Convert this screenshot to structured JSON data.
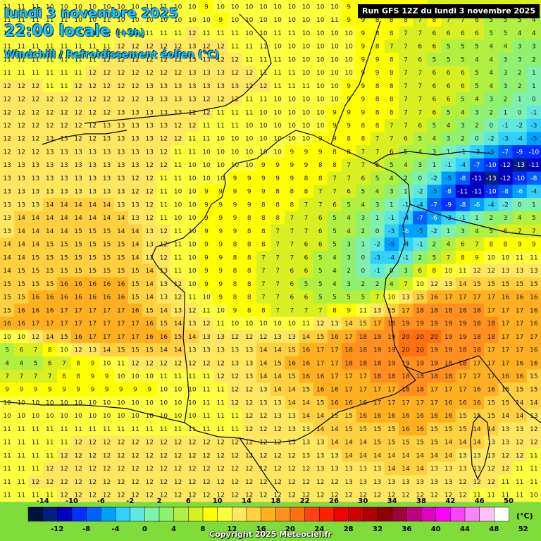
{
  "header": {
    "date": "lundi 3 novembre 2025",
    "time": "22:00 locale",
    "offset": "(+9h)",
    "variable": "Windchill / Refroidissement éolien (°C)"
  },
  "run_info": "Run GFS 12Z du lundi 3 novembre 2025",
  "copyright": "Copyright 2025 Meteociel.fr",
  "legend": {
    "unit": "(°C)",
    "top_ticks": [
      "-14",
      "-10",
      "-6",
      "-2",
      "2",
      "6",
      "10",
      "14",
      "18",
      "22",
      "26",
      "30",
      "34",
      "38",
      "42",
      "46",
      "50"
    ],
    "bottom_ticks": [
      "-12",
      "-8",
      "-4",
      "0",
      "4",
      "8",
      "12",
      "16",
      "20",
      "24",
      "28",
      "32",
      "36",
      "40",
      "44",
      "48",
      "52"
    ],
    "colors": [
      "#001040",
      "#002080",
      "#0000c0",
      "#0030ff",
      "#0060ff",
      "#00a0ff",
      "#30d0ff",
      "#60e8e0",
      "#80f0b0",
      "#90f070",
      "#b0f040",
      "#d8f020",
      "#ffff00",
      "#ffff40",
      "#ffe860",
      "#ffd040",
      "#ffb020",
      "#ff9020",
      "#ff7010",
      "#ff4010",
      "#ff2000",
      "#f00000",
      "#d00000",
      "#b00000",
      "#900000",
      "#a00040",
      "#c00080",
      "#e000c0",
      "#ff00ff",
      "#ff40ff",
      "#ff80ff",
      "#ffc0ff",
      "#ffffff"
    ]
  },
  "grid_values": [
    [
      "11",
      "11",
      "11",
      "10",
      "10",
      "10",
      "10",
      "10",
      "10",
      "10",
      "11",
      "11",
      "10",
      "10",
      "9",
      "10",
      "10",
      "10",
      "10",
      "10",
      "10",
      "10",
      "10",
      "10",
      "9",
      "9",
      "8",
      "8",
      "8",
      "8",
      "7",
      "7",
      "6",
      "6",
      "7",
      "6",
      "7",
      "6"
    ],
    [
      "11",
      "11",
      "11",
      "11",
      "11",
      "10",
      "10",
      "11",
      "10",
      "10",
      "10",
      "10",
      "10",
      "10",
      "10",
      "9",
      "10",
      "10",
      "10",
      "10",
      "10",
      "10",
      "10",
      "11",
      "9",
      "9",
      "8",
      "8",
      "8",
      "7",
      "8",
      "7",
      "7",
      "6",
      "5",
      "5",
      "5",
      "4"
    ],
    [
      "10",
      "11",
      "11",
      "11",
      "11",
      "11",
      "11",
      "11",
      "11",
      "11",
      "11",
      "11",
      "11",
      "12",
      "11",
      "11",
      "11",
      "10",
      "10",
      "11",
      "11",
      "10",
      "10",
      "10",
      "10",
      "9",
      "8",
      "8",
      "7",
      "7",
      "6",
      "6",
      "6",
      "6",
      "5",
      "5",
      "4",
      "4"
    ],
    [
      "11",
      "11",
      "11",
      "11",
      "11",
      "11",
      "11",
      "11",
      "12",
      "12",
      "12",
      "12",
      "12",
      "13",
      "12",
      "12",
      "11",
      "11",
      "11",
      "10",
      "10",
      "10",
      "10",
      "10",
      "10",
      "9",
      "8",
      "7",
      "7",
      "6",
      "6",
      "5",
      "5",
      "5",
      "4",
      "4",
      "3",
      "3"
    ],
    [
      "11",
      "11",
      "11",
      "11",
      "11",
      "11",
      "11",
      "12",
      "12",
      "12",
      "12",
      "12",
      "12",
      "13",
      "13",
      "12",
      "12",
      "11",
      "11",
      "11",
      "10",
      "10",
      "10",
      "10",
      "10",
      "9",
      "9",
      "8",
      "7",
      "6",
      "5",
      "5",
      "5",
      "4",
      "4",
      "3",
      "3",
      "2"
    ],
    [
      "11",
      "11",
      "11",
      "11",
      "11",
      "11",
      "12",
      "12",
      "12",
      "12",
      "12",
      "12",
      "12",
      "13",
      "13",
      "13",
      "12",
      "12",
      "11",
      "11",
      "11",
      "10",
      "10",
      "10",
      "10",
      "9",
      "9",
      "8",
      "7",
      "7",
      "6",
      "6",
      "6",
      "5",
      "4",
      "3",
      "2",
      "1"
    ],
    [
      "12",
      "12",
      "12",
      "11",
      "11",
      "12",
      "12",
      "12",
      "12",
      "12",
      "13",
      "13",
      "13",
      "13",
      "13",
      "13",
      "13",
      "12",
      "12",
      "11",
      "11",
      "11",
      "10",
      "10",
      "9",
      "9",
      "8",
      "8",
      "7",
      "7",
      "6",
      "6",
      "6",
      "5",
      "4",
      "3",
      "2",
      "1"
    ],
    [
      "12",
      "12",
      "12",
      "12",
      "12",
      "12",
      "12",
      "12",
      "12",
      "12",
      "13",
      "13",
      "13",
      "13",
      "12",
      "12",
      "12",
      "11",
      "11",
      "10",
      "10",
      "10",
      "10",
      "10",
      "9",
      "9",
      "8",
      "8",
      "7",
      "7",
      "6",
      "6",
      "5",
      "4",
      "3",
      "2",
      "1",
      "0"
    ],
    [
      "12",
      "12",
      "12",
      "12",
      "12",
      "12",
      "12",
      "12",
      "13",
      "13",
      "13",
      "13",
      "13",
      "12",
      "12",
      "11",
      "11",
      "11",
      "10",
      "10",
      "10",
      "10",
      "10",
      "9",
      "9",
      "9",
      "8",
      "8",
      "7",
      "7",
      "6",
      "5",
      "4",
      "3",
      "2",
      "1",
      "0",
      "-1"
    ],
    [
      "12",
      "12",
      "12",
      "12",
      "12",
      "12",
      "12",
      "13",
      "13",
      "13",
      "13",
      "13",
      "12",
      "12",
      "11",
      "11",
      "11",
      "10",
      "10",
      "10",
      "10",
      "10",
      "10",
      "9",
      "9",
      "8",
      "8",
      "7",
      "7",
      "6",
      "5",
      "4",
      "3",
      "2",
      "0",
      "-1",
      "-2",
      "-3"
    ],
    [
      "12",
      "12",
      "12",
      "13",
      "13",
      "12",
      "12",
      "13",
      "13",
      "13",
      "13",
      "12",
      "12",
      "11",
      "11",
      "10",
      "10",
      "10",
      "10",
      "10",
      "10",
      "10",
      "9",
      "9",
      "8",
      "8",
      "7",
      "7",
      "6",
      "5",
      "4",
      "3",
      "2",
      "0",
      "-2",
      "-3",
      "-4",
      "-5"
    ],
    [
      "12",
      "12",
      "12",
      "13",
      "13",
      "13",
      "13",
      "13",
      "13",
      "13",
      "13",
      "12",
      "11",
      "11",
      "10",
      "10",
      "10",
      "10",
      "10",
      "10",
      "9",
      "9",
      "9",
      "8",
      "8",
      "7",
      "7",
      "6",
      "5",
      "4",
      "3",
      "1",
      "-1",
      "-3",
      "-5",
      "-7",
      "-9",
      "-10"
    ],
    [
      "13",
      "13",
      "13",
      "13",
      "13",
      "13",
      "13",
      "13",
      "13",
      "13",
      "12",
      "12",
      "11",
      "10",
      "10",
      "10",
      "10",
      "10",
      "9",
      "9",
      "9",
      "9",
      "8",
      "8",
      "7",
      "7",
      "6",
      "5",
      "4",
      "3",
      "1",
      "-1",
      "-4",
      "-7",
      "-10",
      "-12",
      "-13",
      "-11"
    ],
    [
      "13",
      "13",
      "13",
      "13",
      "13",
      "13",
      "13",
      "13",
      "13",
      "12",
      "12",
      "11",
      "11",
      "10",
      "10",
      "10",
      "9",
      "9",
      "9",
      "9",
      "9",
      "8",
      "8",
      "7",
      "7",
      "6",
      "5",
      "4",
      "2",
      "0",
      "-2",
      "-5",
      "-8",
      "-11",
      "-13",
      "-12",
      "-10",
      "-8"
    ],
    [
      "13",
      "13",
      "13",
      "13",
      "13",
      "13",
      "13",
      "13",
      "13",
      "12",
      "12",
      "11",
      "10",
      "10",
      "9",
      "9",
      "9",
      "9",
      "9",
      "8",
      "8",
      "8",
      "7",
      "7",
      "6",
      "5",
      "4",
      "3",
      "1",
      "-2",
      "-5",
      "-8",
      "-11",
      "-11",
      "-10",
      "-8",
      "-6",
      "-4"
    ],
    [
      "13",
      "13",
      "13",
      "14",
      "14",
      "14",
      "14",
      "14",
      "13",
      "13",
      "12",
      "11",
      "10",
      "10",
      "9",
      "9",
      "9",
      "9",
      "8",
      "8",
      "8",
      "7",
      "7",
      "6",
      "5",
      "4",
      "3",
      "1",
      "-1",
      "-4",
      "-7",
      "-9",
      "-8",
      "-6",
      "-4",
      "-2",
      "0",
      "1"
    ],
    [
      "13",
      "14",
      "14",
      "14",
      "14",
      "14",
      "14",
      "14",
      "14",
      "13",
      "12",
      "11",
      "10",
      "10",
      "9",
      "9",
      "9",
      "8",
      "8",
      "8",
      "7",
      "7",
      "6",
      "5",
      "4",
      "3",
      "1",
      "-1",
      "-4",
      "-7",
      "-6",
      "-3",
      "-1",
      "1",
      "2",
      "3",
      "4",
      "5"
    ],
    [
      "13",
      "14",
      "14",
      "14",
      "14",
      "15",
      "15",
      "15",
      "14",
      "14",
      "13",
      "12",
      "11",
      "10",
      "9",
      "9",
      "9",
      "8",
      "8",
      "7",
      "7",
      "7",
      "6",
      "5",
      "4",
      "2",
      "0",
      "-3",
      "-6",
      "-5",
      "-2",
      "1",
      "3",
      "4",
      "5",
      "6",
      "7",
      "7"
    ],
    [
      "14",
      "14",
      "14",
      "15",
      "15",
      "15",
      "15",
      "15",
      "15",
      "14",
      "13",
      "12",
      "11",
      "10",
      "9",
      "9",
      "8",
      "8",
      "8",
      "7",
      "7",
      "6",
      "6",
      "5",
      "3",
      "1",
      "-2",
      "-5",
      "-4",
      "-1",
      "2",
      "4",
      "6",
      "7",
      "8",
      "8",
      "9",
      "9"
    ],
    [
      "14",
      "14",
      "15",
      "15",
      "15",
      "15",
      "15",
      "15",
      "15",
      "14",
      "13",
      "12",
      "11",
      "10",
      "9",
      "9",
      "8",
      "8",
      "7",
      "7",
      "7",
      "6",
      "5",
      "4",
      "3",
      "0",
      "-3",
      "-4",
      "-1",
      "2",
      "5",
      "7",
      "8",
      "9",
      "10",
      "10",
      "11",
      "11"
    ],
    [
      "14",
      "15",
      "15",
      "15",
      "15",
      "15",
      "15",
      "15",
      "15",
      "15",
      "14",
      "13",
      "11",
      "10",
      "9",
      "9",
      "8",
      "8",
      "7",
      "7",
      "6",
      "6",
      "5",
      "4",
      "2",
      "0",
      "-1",
      "0",
      "3",
      "6",
      "8",
      "10",
      "11",
      "12",
      "12",
      "13",
      "13",
      "13"
    ],
    [
      "15",
      "15",
      "15",
      "15",
      "16",
      "16",
      "16",
      "16",
      "16",
      "15",
      "14",
      "13",
      "12",
      "10",
      "9",
      "9",
      "8",
      "8",
      "7",
      "7",
      "6",
      "5",
      "5",
      "4",
      "3",
      "2",
      "2",
      "4",
      "7",
      "10",
      "12",
      "13",
      "14",
      "15",
      "15",
      "15",
      "15",
      "15"
    ],
    [
      "15",
      "15",
      "16",
      "16",
      "16",
      "16",
      "16",
      "16",
      "16",
      "15",
      "14",
      "13",
      "12",
      "11",
      "10",
      "9",
      "8",
      "8",
      "7",
      "7",
      "6",
      "6",
      "5",
      "5",
      "5",
      "5",
      "7",
      "10",
      "13",
      "15",
      "16",
      "17",
      "17",
      "17",
      "17",
      "16",
      "16",
      "16"
    ],
    [
      "15",
      "16",
      "16",
      "16",
      "17",
      "17",
      "17",
      "17",
      "17",
      "16",
      "15",
      "14",
      "13",
      "12",
      "11",
      "10",
      "9",
      "8",
      "8",
      "7",
      "7",
      "7",
      "7",
      "8",
      "9",
      "11",
      "13",
      "15",
      "17",
      "18",
      "18",
      "18",
      "18",
      "18",
      "17",
      "17",
      "17",
      "16"
    ],
    [
      "16",
      "16",
      "17",
      "17",
      "17",
      "17",
      "17",
      "17",
      "17",
      "17",
      "16",
      "15",
      "14",
      "13",
      "12",
      "11",
      "10",
      "10",
      "10",
      "10",
      "10",
      "11",
      "12",
      "13",
      "14",
      "15",
      "17",
      "18",
      "19",
      "19",
      "19",
      "19",
      "19",
      "18",
      "18",
      "17",
      "17",
      "16"
    ],
    [
      "10",
      "10",
      "12",
      "14",
      "15",
      "16",
      "17",
      "17",
      "17",
      "17",
      "16",
      "16",
      "15",
      "14",
      "13",
      "13",
      "12",
      "12",
      "12",
      "13",
      "13",
      "14",
      "15",
      "16",
      "17",
      "18",
      "19",
      "19",
      "20",
      "20",
      "20",
      "19",
      "19",
      "18",
      "18",
      "17",
      "17",
      "17"
    ],
    [
      "5",
      "6",
      "7",
      "8",
      "10",
      "12",
      "13",
      "14",
      "15",
      "15",
      "15",
      "14",
      "14",
      "13",
      "13",
      "13",
      "13",
      "13",
      "14",
      "14",
      "15",
      "16",
      "17",
      "17",
      "18",
      "18",
      "19",
      "19",
      "20",
      "20",
      "19",
      "19",
      "18",
      "18",
      "17",
      "17",
      "17",
      "16"
    ],
    [
      "4",
      "4",
      "5",
      "6",
      "7",
      "8",
      "9",
      "10",
      "11",
      "12",
      "12",
      "12",
      "12",
      "12",
      "12",
      "12",
      "13",
      "13",
      "14",
      "15",
      "16",
      "16",
      "17",
      "17",
      "18",
      "18",
      "18",
      "19",
      "19",
      "19",
      "19",
      "18",
      "18",
      "17",
      "17",
      "17",
      "16",
      "16"
    ],
    [
      "7",
      "7",
      "7",
      "7",
      "8",
      "8",
      "9",
      "9",
      "10",
      "10",
      "10",
      "11",
      "11",
      "11",
      "11",
      "12",
      "12",
      "13",
      "14",
      "14",
      "15",
      "16",
      "16",
      "17",
      "17",
      "17",
      "18",
      "18",
      "18",
      "18",
      "18",
      "18",
      "17",
      "17",
      "17",
      "16",
      "16",
      "15"
    ],
    [
      "9",
      "9",
      "9",
      "9",
      "9",
      "9",
      "9",
      "9",
      "9",
      "9",
      "9",
      "10",
      "10",
      "10",
      "11",
      "11",
      "12",
      "12",
      "13",
      "14",
      "14",
      "15",
      "16",
      "16",
      "17",
      "17",
      "17",
      "17",
      "18",
      "18",
      "17",
      "17",
      "17",
      "16",
      "16",
      "15",
      "15",
      "15"
    ],
    [
      "10",
      "10",
      "10",
      "10",
      "10",
      "10",
      "10",
      "10",
      "10",
      "10",
      "10",
      "10",
      "10",
      "10",
      "11",
      "11",
      "12",
      "12",
      "13",
      "13",
      "14",
      "14",
      "15",
      "16",
      "16",
      "16",
      "17",
      "17",
      "17",
      "17",
      "17",
      "16",
      "16",
      "16",
      "15",
      "15",
      "14",
      "14"
    ],
    [
      "10",
      "10",
      "10",
      "10",
      "10",
      "10",
      "10",
      "10",
      "10",
      "10",
      "10",
      "10",
      "10",
      "10",
      "11",
      "11",
      "11",
      "12",
      "12",
      "13",
      "13",
      "14",
      "14",
      "15",
      "15",
      "16",
      "16",
      "16",
      "16",
      "16",
      "16",
      "16",
      "15",
      "15",
      "15",
      "14",
      "14",
      "13"
    ],
    [
      "11",
      "11",
      "11",
      "11",
      "11",
      "11",
      "11",
      "11",
      "11",
      "11",
      "11",
      "11",
      "11",
      "11",
      "11",
      "11",
      "11",
      "12",
      "12",
      "12",
      "13",
      "13",
      "14",
      "14",
      "15",
      "15",
      "15",
      "15",
      "16",
      "16",
      "15",
      "15",
      "15",
      "14",
      "14",
      "13",
      "13",
      "12"
    ],
    [
      "11",
      "11",
      "11",
      "11",
      "11",
      "12",
      "12",
      "12",
      "12",
      "12",
      "12",
      "12",
      "12",
      "12",
      "12",
      "12",
      "12",
      "12",
      "12",
      "12",
      "13",
      "13",
      "13",
      "14",
      "14",
      "14",
      "15",
      "15",
      "15",
      "15",
      "15",
      "14",
      "14",
      "14",
      "13",
      "13",
      "12",
      "12"
    ],
    [
      "11",
      "11",
      "11",
      "11",
      "12",
      "12",
      "12",
      "12",
      "12",
      "12",
      "12",
      "12",
      "12",
      "12",
      "12",
      "12",
      "12",
      "12",
      "12",
      "12",
      "12",
      "13",
      "13",
      "13",
      "14",
      "14",
      "14",
      "14",
      "14",
      "14",
      "14",
      "14",
      "13",
      "13",
      "13",
      "12",
      "12",
      "11"
    ],
    [
      "11",
      "11",
      "11",
      "12",
      "12",
      "12",
      "12",
      "12",
      "12",
      "12",
      "12",
      "12",
      "12",
      "12",
      "12",
      "12",
      "12",
      "12",
      "12",
      "12",
      "12",
      "12",
      "13",
      "13",
      "13",
      "13",
      "13",
      "14",
      "14",
      "14",
      "13",
      "13",
      "13",
      "13",
      "12",
      "12",
      "11",
      "11"
    ],
    [
      "11",
      "11",
      "12",
      "12",
      "12",
      "12",
      "12",
      "12",
      "12",
      "12",
      "12",
      "12",
      "12",
      "12",
      "12",
      "12",
      "12",
      "12",
      "12",
      "12",
      "12",
      "12",
      "12",
      "12",
      "13",
      "13",
      "13",
      "13",
      "13",
      "13",
      "13",
      "13",
      "12",
      "12",
      "12",
      "11",
      "11",
      "11"
    ],
    [
      "11",
      "11",
      "11",
      "11",
      "12",
      "12",
      "12",
      "12",
      "12",
      "12",
      "12",
      "12",
      "12",
      "12",
      "12",
      "12",
      "12",
      "12",
      "12",
      "12",
      "12",
      "12",
      "12",
      "12",
      "12",
      "12",
      "12",
      "12",
      "12",
      "12",
      "12",
      "12",
      "12",
      "11",
      "11",
      "11",
      "11",
      "10"
    ]
  ]
}
